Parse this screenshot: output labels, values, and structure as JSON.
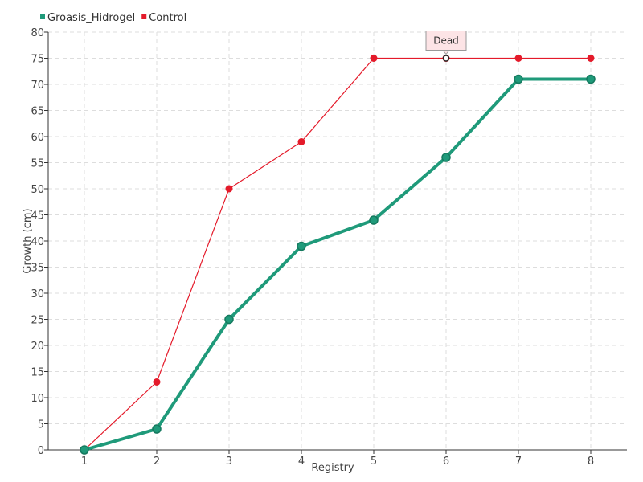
{
  "chart_data": {
    "type": "line",
    "title": "",
    "xlabel": "Registry",
    "ylabel": "Growth (cm)",
    "categories": [
      "1",
      "2",
      "3",
      "4",
      "5",
      "6",
      "7",
      "8"
    ],
    "ylim": [
      0,
      80
    ],
    "yticks": [
      0,
      5,
      10,
      15,
      20,
      25,
      30,
      35,
      40,
      45,
      50,
      55,
      60,
      65,
      70,
      75,
      80
    ],
    "grid": true,
    "legend_position": "top-left",
    "series": [
      {
        "name": "Groasis_Hidrogel",
        "color": "#1f9a7a",
        "values": [
          0,
          4,
          25,
          39,
          44,
          56,
          71,
          71
        ]
      },
      {
        "name": "Control",
        "color": "#e41a2a",
        "values": [
          0,
          13,
          50,
          59,
          75,
          75,
          75,
          75
        ]
      }
    ],
    "annotations": [
      {
        "text": "Dead",
        "series": "Control",
        "category": "6",
        "value": 75
      }
    ]
  }
}
